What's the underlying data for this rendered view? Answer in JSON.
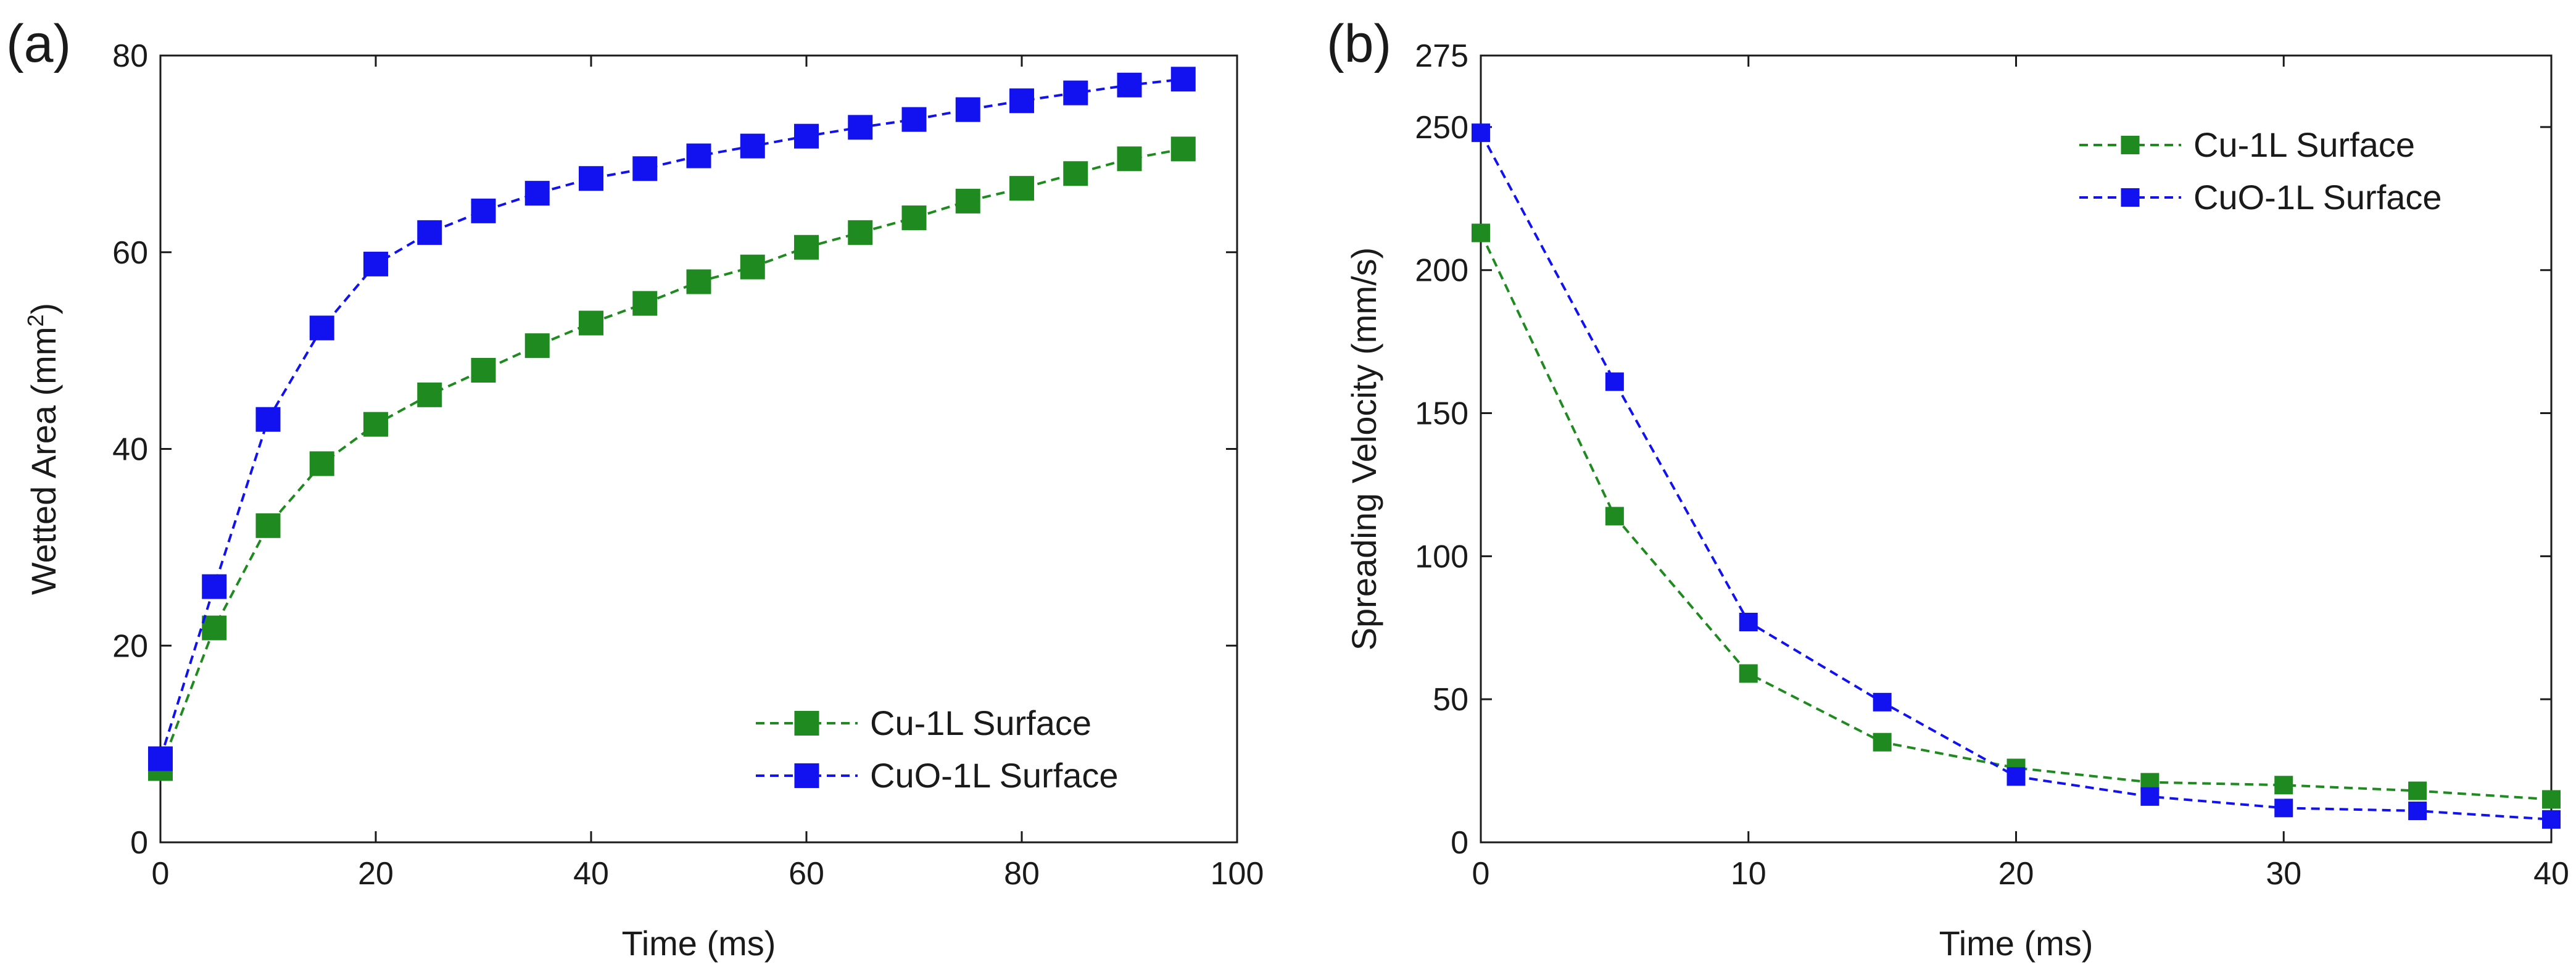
{
  "colors": {
    "green": "#1f8a1f",
    "blue": "#1212f0",
    "axis": "#1a1a1a"
  },
  "chart_data": [
    {
      "panel_label": "(a)",
      "type": "line",
      "marker": "square",
      "line_style": "dashed",
      "title": "",
      "xlabel": "Time (ms)",
      "ylabel_prefix": "Wetted Area (mm",
      "ylabel_sup": "2",
      "ylabel_suffix": ")",
      "xlim": [
        0,
        100
      ],
      "ylim": [
        0,
        80
      ],
      "xticks": [
        0,
        20,
        40,
        60,
        80,
        100
      ],
      "yticks": [
        0,
        20,
        40,
        60,
        80
      ],
      "legend_position": "bottom-right",
      "series": [
        {
          "name": "Cu-1L Surface",
          "color": "#1f8a1f",
          "x": [
            0,
            5,
            10,
            15,
            20,
            25,
            30,
            35,
            40,
            45,
            50,
            55,
            60,
            65,
            70,
            75,
            80,
            85,
            90,
            95
          ],
          "y": [
            7.5,
            21.8,
            32.2,
            38.5,
            42.5,
            45.5,
            48,
            50.5,
            52.8,
            54.8,
            57,
            58.5,
            60.5,
            62,
            63.5,
            65.2,
            66.5,
            68,
            69.5,
            70.5
          ]
        },
        {
          "name": "CuO-1L Surface",
          "color": "#1212f0",
          "x": [
            0,
            5,
            10,
            15,
            20,
            25,
            30,
            35,
            40,
            45,
            50,
            55,
            60,
            65,
            70,
            75,
            80,
            85,
            90,
            95
          ],
          "y": [
            8.5,
            26,
            43,
            52.3,
            58.8,
            62,
            64.2,
            66,
            67.5,
            68.5,
            69.8,
            70.8,
            71.8,
            72.7,
            73.5,
            74.5,
            75.4,
            76.2,
            77,
            77.6
          ]
        }
      ]
    },
    {
      "panel_label": "(b)",
      "type": "line",
      "marker": "square",
      "line_style": "dashed",
      "title": "",
      "xlabel": "Time (ms)",
      "ylabel": "Spreading Velocity (mm/s)",
      "xlim": [
        0,
        40
      ],
      "ylim": [
        0,
        275
      ],
      "xticks": [
        0,
        10,
        20,
        30,
        40
      ],
      "yticks": [
        0,
        50,
        100,
        150,
        200,
        250,
        275
      ],
      "legend_position": "top-right",
      "series": [
        {
          "name": "Cu-1L Surface",
          "color": "#1f8a1f",
          "x": [
            0,
            5,
            10,
            15,
            20,
            25,
            30,
            35,
            40
          ],
          "y": [
            213,
            114,
            59,
            35,
            26,
            21,
            20,
            18,
            15
          ]
        },
        {
          "name": "CuO-1L Surface",
          "color": "#1212f0",
          "x": [
            0,
            5,
            10,
            15,
            20,
            25,
            30,
            35,
            40
          ],
          "y": [
            248,
            161,
            77,
            49,
            23,
            16,
            12,
            11,
            8
          ]
        }
      ]
    }
  ]
}
